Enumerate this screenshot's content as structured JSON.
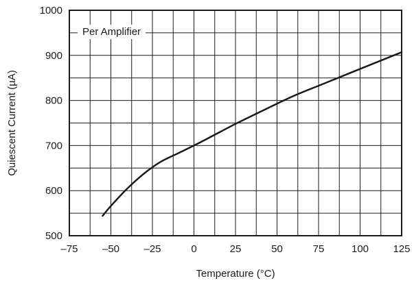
{
  "chart_data": {
    "type": "line",
    "xlabel": "Temperature (°C)",
    "ylabel": "Quiescent Current (µA)",
    "annotation": "Per Amplifier",
    "xlim": [
      -75,
      125
    ],
    "ylim": [
      500,
      1000
    ],
    "x_ticks": [
      -75,
      -50,
      -25,
      0,
      25,
      50,
      75,
      100,
      125
    ],
    "y_ticks": [
      500,
      600,
      700,
      800,
      900,
      1000
    ],
    "x_tick_labels": [
      "–75",
      "–50",
      "–25",
      "0",
      "25",
      "50",
      "75",
      "100",
      "125"
    ],
    "y_tick_labels": [
      "500",
      "600",
      "700",
      "800",
      "900",
      "1000"
    ],
    "x_minor_grid": [
      -62.5,
      -37.5,
      -12.5,
      12.5,
      37.5,
      62.5,
      87.5,
      112.5
    ],
    "y_minor_grid": [
      550,
      650,
      750,
      850,
      950
    ],
    "grid": true,
    "series": [
      {
        "color": "#1a1a1a",
        "x": [
          -55,
          -50,
          -40,
          -30,
          -20,
          -10,
          0,
          10,
          25,
          40,
          60,
          80,
          100,
          125
        ],
        "y": [
          544,
          566,
          605,
          638,
          664,
          682,
          700,
          719,
          748,
          775,
          810,
          840,
          870,
          907
        ]
      }
    ]
  }
}
